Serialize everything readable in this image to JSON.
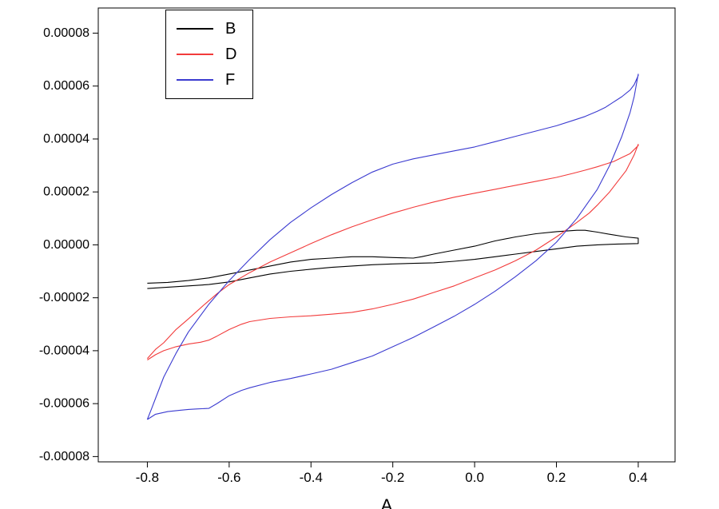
{
  "chart_data": {
    "type": "line",
    "title": "",
    "xlabel": "A",
    "ylabel": "",
    "xlim": [
      -0.92,
      0.49
    ],
    "ylim": [
      -8.2e-05,
      8.95e-05
    ],
    "grid": false,
    "legend_position": "top-left-inset",
    "x_ticks": {
      "values": [
        -0.8,
        -0.6,
        -0.4,
        -0.2,
        0,
        0.2,
        0.4
      ],
      "labels": [
        "-0.8",
        "-0.6",
        "-0.4",
        "-0.2",
        "0.0",
        "0.2",
        "0.4"
      ]
    },
    "y_ticks": {
      "values": [
        8e-05,
        6e-05,
        4e-05,
        2e-05,
        0,
        -2e-05,
        -4e-05,
        -6e-05,
        -8e-05
      ],
      "labels": [
        "0.00008",
        "0.00006",
        "0.00004",
        "0.00002",
        "0.00000",
        "-0.00002",
        "-0.00004",
        "-0.00006",
        "-0.00008"
      ]
    },
    "series": [
      {
        "name": "B",
        "color": "#000000",
        "points": [
          [
            -0.8,
            -1.65e-05
          ],
          [
            -0.75,
            -1.6e-05
          ],
          [
            -0.7,
            -1.55e-05
          ],
          [
            -0.65,
            -1.5e-05
          ],
          [
            -0.6,
            -1.4e-05
          ],
          [
            -0.55,
            -1.25e-05
          ],
          [
            -0.5,
            -1.1e-05
          ],
          [
            -0.45,
            -1e-05
          ],
          [
            -0.4,
            -9.2e-06
          ],
          [
            -0.35,
            -8.5e-06
          ],
          [
            -0.3,
            -8e-06
          ],
          [
            -0.25,
            -7.5e-06
          ],
          [
            -0.2,
            -7.2e-06
          ],
          [
            -0.15,
            -7e-06
          ],
          [
            -0.1,
            -6.8e-06
          ],
          [
            -0.05,
            -6.2e-06
          ],
          [
            0,
            -5.5e-06
          ],
          [
            0.05,
            -4.5e-06
          ],
          [
            0.1,
            -3.5e-06
          ],
          [
            0.15,
            -2.5e-06
          ],
          [
            0.2,
            -1.5e-06
          ],
          [
            0.25,
            -5e-07
          ],
          [
            0.3,
            0
          ],
          [
            0.35,
            3e-07
          ],
          [
            0.4,
            5e-07
          ],
          [
            0.4,
            2.5e-06
          ],
          [
            0.37,
            3e-06
          ],
          [
            0.33,
            4e-06
          ],
          [
            0.3,
            4.8e-06
          ],
          [
            0.27,
            5.5e-06
          ],
          [
            0.25,
            5.5e-06
          ],
          [
            0.2,
            5e-06
          ],
          [
            0.15,
            4.2e-06
          ],
          [
            0.1,
            3e-06
          ],
          [
            0.05,
            1.5e-06
          ],
          [
            0,
            -5e-07
          ],
          [
            -0.05,
            -2e-06
          ],
          [
            -0.1,
            -3.5e-06
          ],
          [
            -0.13,
            -4.5e-06
          ],
          [
            -0.15,
            -5e-06
          ],
          [
            -0.2,
            -4.8e-06
          ],
          [
            -0.25,
            -4.5e-06
          ],
          [
            -0.3,
            -4.5e-06
          ],
          [
            -0.35,
            -5e-06
          ],
          [
            -0.4,
            -5.5e-06
          ],
          [
            -0.45,
            -6.5e-06
          ],
          [
            -0.5,
            -8e-06
          ],
          [
            -0.55,
            -9.5e-06
          ],
          [
            -0.6,
            -1.1e-05
          ],
          [
            -0.65,
            -1.25e-05
          ],
          [
            -0.7,
            -1.35e-05
          ],
          [
            -0.75,
            -1.42e-05
          ],
          [
            -0.8,
            -1.45e-05
          ]
        ]
      },
      {
        "name": "D",
        "color": "#f23b3b",
        "points": [
          [
            -0.8,
            -4.35e-05
          ],
          [
            -0.78,
            -4.15e-05
          ],
          [
            -0.76,
            -4e-05
          ],
          [
            -0.73,
            -3.85e-05
          ],
          [
            -0.7,
            -3.75e-05
          ],
          [
            -0.67,
            -3.68e-05
          ],
          [
            -0.65,
            -3.6e-05
          ],
          [
            -0.63,
            -3.45e-05
          ],
          [
            -0.6,
            -3.2e-05
          ],
          [
            -0.57,
            -3e-05
          ],
          [
            -0.55,
            -2.9e-05
          ],
          [
            -0.5,
            -2.78e-05
          ],
          [
            -0.45,
            -2.72e-05
          ],
          [
            -0.4,
            -2.68e-05
          ],
          [
            -0.35,
            -2.62e-05
          ],
          [
            -0.3,
            -2.55e-05
          ],
          [
            -0.25,
            -2.42e-05
          ],
          [
            -0.2,
            -2.25e-05
          ],
          [
            -0.15,
            -2.05e-05
          ],
          [
            -0.1,
            -1.8e-05
          ],
          [
            -0.05,
            -1.55e-05
          ],
          [
            0,
            -1.25e-05
          ],
          [
            0.05,
            -9.5e-06
          ],
          [
            0.1,
            -6e-06
          ],
          [
            0.15,
            -2e-06
          ],
          [
            0.2,
            3e-06
          ],
          [
            0.25,
            8.5e-06
          ],
          [
            0.28,
            1.2e-05
          ],
          [
            0.3,
            1.5e-05
          ],
          [
            0.33,
            2e-05
          ],
          [
            0.35,
            2.4e-05
          ],
          [
            0.37,
            2.8e-05
          ],
          [
            0.38,
            3.1e-05
          ],
          [
            0.39,
            3.4e-05
          ],
          [
            0.4,
            3.8e-05
          ],
          [
            0.4,
            3.75e-05
          ],
          [
            0.39,
            3.6e-05
          ],
          [
            0.38,
            3.45e-05
          ],
          [
            0.36,
            3.3e-05
          ],
          [
            0.34,
            3.15e-05
          ],
          [
            0.32,
            3.05e-05
          ],
          [
            0.3,
            2.95e-05
          ],
          [
            0.27,
            2.82e-05
          ],
          [
            0.24,
            2.7e-05
          ],
          [
            0.2,
            2.55e-05
          ],
          [
            0.15,
            2.4e-05
          ],
          [
            0.1,
            2.25e-05
          ],
          [
            0.05,
            2.1e-05
          ],
          [
            0,
            1.95e-05
          ],
          [
            -0.05,
            1.8e-05
          ],
          [
            -0.1,
            1.62e-05
          ],
          [
            -0.15,
            1.42e-05
          ],
          [
            -0.2,
            1.2e-05
          ],
          [
            -0.25,
            9.5e-06
          ],
          [
            -0.3,
            6.8e-06
          ],
          [
            -0.35,
            3.8e-06
          ],
          [
            -0.4,
            5e-07
          ],
          [
            -0.45,
            -3e-06
          ],
          [
            -0.5,
            -6.5e-06
          ],
          [
            -0.55,
            -1.05e-05
          ],
          [
            -0.6,
            -1.5e-05
          ],
          [
            -0.63,
            -1.85e-05
          ],
          [
            -0.66,
            -2.25e-05
          ],
          [
            -0.7,
            -2.8e-05
          ],
          [
            -0.73,
            -3.2e-05
          ],
          [
            -0.76,
            -3.7e-05
          ],
          [
            -0.78,
            -3.95e-05
          ],
          [
            -0.8,
            -4.3e-05
          ]
        ]
      },
      {
        "name": "F",
        "color": "#3b3bd0",
        "points": [
          [
            -0.8,
            -6.6e-05
          ],
          [
            -0.78,
            -6.4e-05
          ],
          [
            -0.75,
            -6.3e-05
          ],
          [
            -0.72,
            -6.25e-05
          ],
          [
            -0.7,
            -6.22e-05
          ],
          [
            -0.68,
            -6.2e-05
          ],
          [
            -0.65,
            -6.18e-05
          ],
          [
            -0.63,
            -6e-05
          ],
          [
            -0.6,
            -5.7e-05
          ],
          [
            -0.57,
            -5.5e-05
          ],
          [
            -0.55,
            -5.4e-05
          ],
          [
            -0.5,
            -5.2e-05
          ],
          [
            -0.45,
            -5.05e-05
          ],
          [
            -0.4,
            -4.88e-05
          ],
          [
            -0.35,
            -4.7e-05
          ],
          [
            -0.3,
            -4.45e-05
          ],
          [
            -0.25,
            -4.2e-05
          ],
          [
            -0.2,
            -3.85e-05
          ],
          [
            -0.15,
            -3.5e-05
          ],
          [
            -0.1,
            -3.1e-05
          ],
          [
            -0.05,
            -2.7e-05
          ],
          [
            0,
            -2.25e-05
          ],
          [
            0.05,
            -1.75e-05
          ],
          [
            0.1,
            -1.2e-05
          ],
          [
            0.15,
            -6e-06
          ],
          [
            0.2,
            1e-06
          ],
          [
            0.25,
            1e-05
          ],
          [
            0.3,
            2.1e-05
          ],
          [
            0.33,
            3e-05
          ],
          [
            0.36,
            4.1e-05
          ],
          [
            0.38,
            5e-05
          ],
          [
            0.39,
            5.6e-05
          ],
          [
            0.4,
            6.45e-05
          ],
          [
            0.4,
            6.4e-05
          ],
          [
            0.39,
            6.05e-05
          ],
          [
            0.38,
            5.85e-05
          ],
          [
            0.36,
            5.6e-05
          ],
          [
            0.34,
            5.4e-05
          ],
          [
            0.32,
            5.2e-05
          ],
          [
            0.3,
            5.05e-05
          ],
          [
            0.27,
            4.85e-05
          ],
          [
            0.24,
            4.7e-05
          ],
          [
            0.2,
            4.5e-05
          ],
          [
            0.15,
            4.3e-05
          ],
          [
            0.1,
            4.1e-05
          ],
          [
            0.05,
            3.9e-05
          ],
          [
            0,
            3.7e-05
          ],
          [
            -0.05,
            3.55e-05
          ],
          [
            -0.1,
            3.4e-05
          ],
          [
            -0.15,
            3.25e-05
          ],
          [
            -0.2,
            3.05e-05
          ],
          [
            -0.25,
            2.75e-05
          ],
          [
            -0.3,
            2.35e-05
          ],
          [
            -0.35,
            1.9e-05
          ],
          [
            -0.4,
            1.4e-05
          ],
          [
            -0.45,
            8.5e-06
          ],
          [
            -0.5,
            2e-06
          ],
          [
            -0.55,
            -5.5e-06
          ],
          [
            -0.6,
            -1.35e-05
          ],
          [
            -0.65,
            -2.25e-05
          ],
          [
            -0.7,
            -3.3e-05
          ],
          [
            -0.73,
            -4.1e-05
          ],
          [
            -0.76,
            -5e-05
          ],
          [
            -0.78,
            -5.8e-05
          ],
          [
            -0.79,
            -6.2e-05
          ],
          [
            -0.8,
            -6.6e-05
          ]
        ]
      }
    ]
  }
}
